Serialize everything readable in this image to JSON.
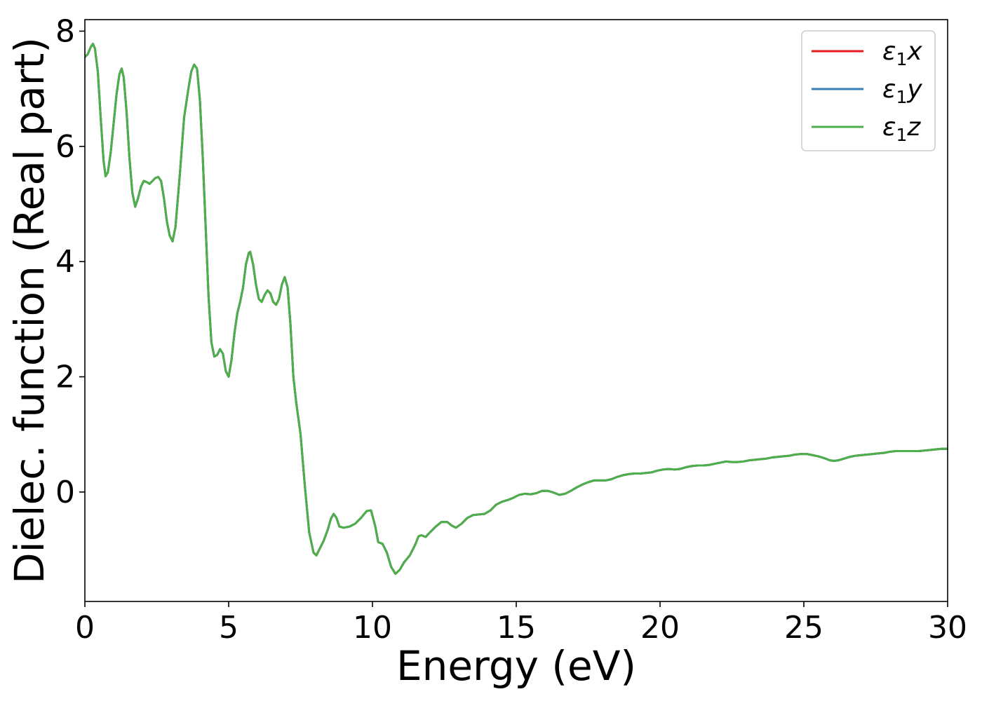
{
  "chart_data": {
    "type": "line",
    "title": "",
    "xlabel": "Energy (eV)",
    "ylabel": "Dielec. function (Real part)",
    "xlim": [
      0,
      30
    ],
    "ylim": [
      -1.9,
      8.2
    ],
    "xticks": [
      0,
      5,
      10,
      15,
      20,
      25,
      30
    ],
    "yticks": [
      0,
      2,
      4,
      6,
      8
    ],
    "grid": false,
    "legend_position": "top-right",
    "series": [
      {
        "name": "ε1x",
        "legend": {
          "symbol": "ε",
          "sub": "1",
          "var": "x"
        },
        "color": "#e41a1c",
        "points": [
          [
            0,
            7.55
          ],
          [
            0.1,
            7.6
          ],
          [
            0.2,
            7.72
          ],
          [
            0.28,
            7.78
          ],
          [
            0.35,
            7.7
          ],
          [
            0.45,
            7.3
          ],
          [
            0.55,
            6.5
          ],
          [
            0.65,
            5.75
          ],
          [
            0.72,
            5.48
          ],
          [
            0.8,
            5.55
          ],
          [
            0.9,
            5.9
          ],
          [
            1.0,
            6.4
          ],
          [
            1.1,
            6.9
          ],
          [
            1.2,
            7.25
          ],
          [
            1.28,
            7.35
          ],
          [
            1.35,
            7.2
          ],
          [
            1.45,
            6.6
          ],
          [
            1.55,
            5.8
          ],
          [
            1.65,
            5.2
          ],
          [
            1.75,
            4.95
          ],
          [
            1.85,
            5.1
          ],
          [
            1.95,
            5.3
          ],
          [
            2.05,
            5.4
          ],
          [
            2.15,
            5.38
          ],
          [
            2.25,
            5.35
          ],
          [
            2.35,
            5.4
          ],
          [
            2.45,
            5.45
          ],
          [
            2.55,
            5.47
          ],
          [
            2.65,
            5.4
          ],
          [
            2.75,
            5.1
          ],
          [
            2.85,
            4.7
          ],
          [
            2.95,
            4.45
          ],
          [
            3.05,
            4.35
          ],
          [
            3.15,
            4.6
          ],
          [
            3.3,
            5.5
          ],
          [
            3.45,
            6.5
          ],
          [
            3.6,
            7.0
          ],
          [
            3.7,
            7.3
          ],
          [
            3.8,
            7.42
          ],
          [
            3.9,
            7.35
          ],
          [
            4.0,
            6.8
          ],
          [
            4.1,
            5.8
          ],
          [
            4.2,
            4.6
          ],
          [
            4.3,
            3.4
          ],
          [
            4.4,
            2.6
          ],
          [
            4.5,
            2.35
          ],
          [
            4.6,
            2.38
          ],
          [
            4.7,
            2.48
          ],
          [
            4.8,
            2.4
          ],
          [
            4.9,
            2.1
          ],
          [
            5.0,
            2.0
          ],
          [
            5.1,
            2.3
          ],
          [
            5.2,
            2.75
          ],
          [
            5.3,
            3.1
          ],
          [
            5.4,
            3.3
          ],
          [
            5.5,
            3.55
          ],
          [
            5.6,
            3.95
          ],
          [
            5.7,
            4.15
          ],
          [
            5.75,
            4.17
          ],
          [
            5.85,
            3.95
          ],
          [
            5.95,
            3.6
          ],
          [
            6.05,
            3.35
          ],
          [
            6.15,
            3.3
          ],
          [
            6.25,
            3.42
          ],
          [
            6.35,
            3.5
          ],
          [
            6.45,
            3.45
          ],
          [
            6.55,
            3.3
          ],
          [
            6.65,
            3.25
          ],
          [
            6.75,
            3.35
          ],
          [
            6.85,
            3.6
          ],
          [
            6.95,
            3.73
          ],
          [
            7.05,
            3.55
          ],
          [
            7.15,
            2.9
          ],
          [
            7.25,
            2.0
          ],
          [
            7.35,
            1.55
          ],
          [
            7.5,
            1.0
          ],
          [
            7.65,
            0.1
          ],
          [
            7.8,
            -0.7
          ],
          [
            7.95,
            -1.05
          ],
          [
            8.05,
            -1.1
          ],
          [
            8.15,
            -1.0
          ],
          [
            8.3,
            -0.85
          ],
          [
            8.45,
            -0.65
          ],
          [
            8.55,
            -0.47
          ],
          [
            8.65,
            -0.38
          ],
          [
            8.75,
            -0.45
          ],
          [
            8.85,
            -0.6
          ],
          [
            9.0,
            -0.62
          ],
          [
            9.2,
            -0.6
          ],
          [
            9.4,
            -0.55
          ],
          [
            9.6,
            -0.45
          ],
          [
            9.8,
            -0.33
          ],
          [
            9.95,
            -0.32
          ],
          [
            10.1,
            -0.6
          ],
          [
            10.2,
            -0.87
          ],
          [
            10.35,
            -0.9
          ],
          [
            10.5,
            -1.05
          ],
          [
            10.65,
            -1.3
          ],
          [
            10.8,
            -1.42
          ],
          [
            10.95,
            -1.35
          ],
          [
            11.1,
            -1.22
          ],
          [
            11.3,
            -1.1
          ],
          [
            11.5,
            -0.9
          ],
          [
            11.6,
            -0.77
          ],
          [
            11.7,
            -0.75
          ],
          [
            11.85,
            -0.78
          ],
          [
            12.0,
            -0.7
          ],
          [
            12.2,
            -0.6
          ],
          [
            12.4,
            -0.52
          ],
          [
            12.6,
            -0.52
          ],
          [
            12.75,
            -0.58
          ],
          [
            12.9,
            -0.62
          ],
          [
            13.1,
            -0.55
          ],
          [
            13.3,
            -0.45
          ],
          [
            13.5,
            -0.4
          ],
          [
            13.7,
            -0.39
          ],
          [
            13.9,
            -0.38
          ],
          [
            14.1,
            -0.32
          ],
          [
            14.3,
            -0.22
          ],
          [
            14.5,
            -0.17
          ],
          [
            14.7,
            -0.14
          ],
          [
            14.9,
            -0.1
          ],
          [
            15.1,
            -0.05
          ],
          [
            15.3,
            -0.03
          ],
          [
            15.5,
            -0.04
          ],
          [
            15.7,
            -0.02
          ],
          [
            15.9,
            0.02
          ],
          [
            16.1,
            0.02
          ],
          [
            16.3,
            -0.01
          ],
          [
            16.5,
            -0.05
          ],
          [
            16.7,
            -0.03
          ],
          [
            16.9,
            0.02
          ],
          [
            17.1,
            0.08
          ],
          [
            17.3,
            0.13
          ],
          [
            17.5,
            0.17
          ],
          [
            17.7,
            0.2
          ],
          [
            17.9,
            0.2
          ],
          [
            18.1,
            0.2
          ],
          [
            18.3,
            0.22
          ],
          [
            18.5,
            0.26
          ],
          [
            18.7,
            0.29
          ],
          [
            18.9,
            0.31
          ],
          [
            19.1,
            0.32
          ],
          [
            19.3,
            0.32
          ],
          [
            19.5,
            0.33
          ],
          [
            19.7,
            0.34
          ],
          [
            19.9,
            0.37
          ],
          [
            20.1,
            0.39
          ],
          [
            20.3,
            0.4
          ],
          [
            20.5,
            0.39
          ],
          [
            20.7,
            0.4
          ],
          [
            20.9,
            0.43
          ],
          [
            21.1,
            0.45
          ],
          [
            21.3,
            0.46
          ],
          [
            21.5,
            0.46
          ],
          [
            21.7,
            0.47
          ],
          [
            21.9,
            0.49
          ],
          [
            22.1,
            0.51
          ],
          [
            22.3,
            0.53
          ],
          [
            22.5,
            0.52
          ],
          [
            22.7,
            0.52
          ],
          [
            22.9,
            0.53
          ],
          [
            23.1,
            0.55
          ],
          [
            23.3,
            0.56
          ],
          [
            23.5,
            0.57
          ],
          [
            23.7,
            0.58
          ],
          [
            23.9,
            0.6
          ],
          [
            24.1,
            0.61
          ],
          [
            24.3,
            0.62
          ],
          [
            24.5,
            0.63
          ],
          [
            24.7,
            0.65
          ],
          [
            24.9,
            0.66
          ],
          [
            25.1,
            0.66
          ],
          [
            25.3,
            0.64
          ],
          [
            25.5,
            0.62
          ],
          [
            25.7,
            0.59
          ],
          [
            25.9,
            0.55
          ],
          [
            26.05,
            0.54
          ],
          [
            26.2,
            0.55
          ],
          [
            26.4,
            0.58
          ],
          [
            26.6,
            0.61
          ],
          [
            26.8,
            0.63
          ],
          [
            27.0,
            0.64
          ],
          [
            27.2,
            0.65
          ],
          [
            27.4,
            0.66
          ],
          [
            27.6,
            0.67
          ],
          [
            27.8,
            0.68
          ],
          [
            28.0,
            0.7
          ],
          [
            28.2,
            0.71
          ],
          [
            28.4,
            0.71
          ],
          [
            28.6,
            0.71
          ],
          [
            28.8,
            0.71
          ],
          [
            29.0,
            0.71
          ],
          [
            29.2,
            0.72
          ],
          [
            29.4,
            0.73
          ],
          [
            29.6,
            0.74
          ],
          [
            29.8,
            0.75
          ],
          [
            30.0,
            0.75
          ]
        ]
      },
      {
        "name": "ε1y",
        "legend": {
          "symbol": "ε",
          "sub": "1",
          "var": "y"
        },
        "color": "#377eb8",
        "same_as": 0
      },
      {
        "name": "ε1z",
        "legend": {
          "symbol": "ε",
          "sub": "1",
          "var": "z"
        },
        "color": "#4daf4a",
        "same_as": 0
      }
    ]
  }
}
